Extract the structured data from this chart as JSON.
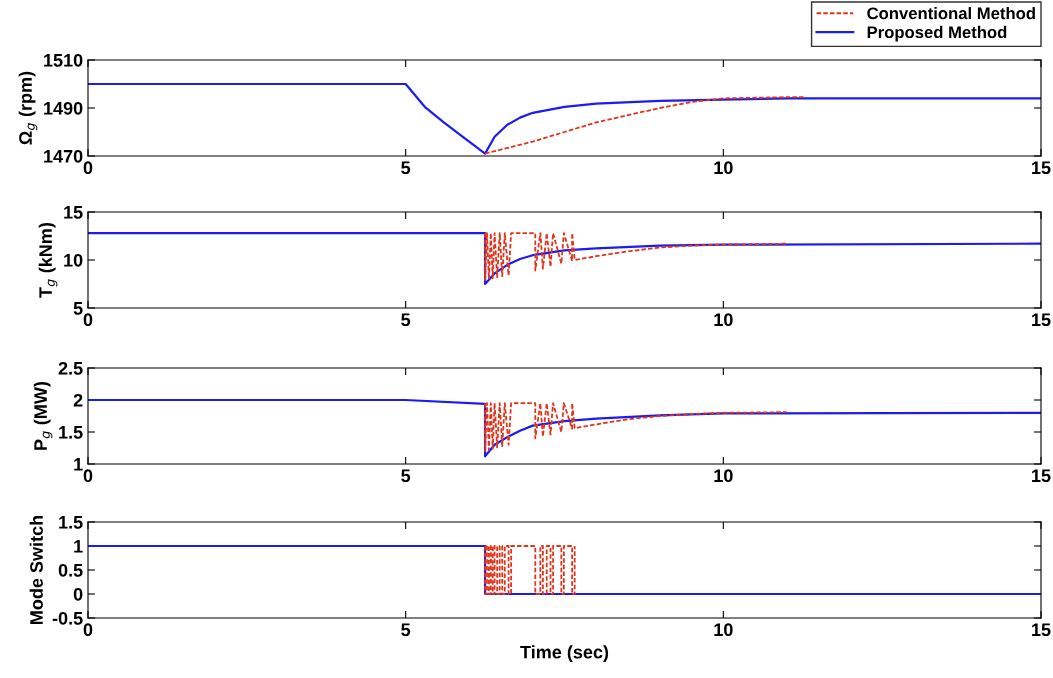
{
  "chart_data": [
    {
      "type": "line",
      "ylabel": "Ω$_{g}$ (rpm)",
      "xlim": [
        0,
        15
      ],
      "xticks": [
        0,
        5,
        10,
        15
      ],
      "ylim": [
        1470,
        1510
      ],
      "yticks": [
        1470,
        1490,
        1510
      ],
      "grid": false,
      "legend": "top right",
      "series": [
        {
          "name": "Conventional Method",
          "color": "#e2341a",
          "line_style": "dashed",
          "x": [
            6.25,
            7.0,
            7.5,
            8.0,
            8.5,
            9.0,
            9.5,
            10.0,
            11.0,
            11.3
          ],
          "values": [
            1471,
            1476,
            1480,
            1484,
            1487,
            1490,
            1492.5,
            1494,
            1494.5,
            1494.5
          ]
        },
        {
          "name": "Proposed Method",
          "color": "#1c1cf0",
          "line_style": "solid",
          "x": [
            0,
            5,
            5.3,
            5.6,
            5.9,
            6.25,
            6.4,
            6.6,
            6.8,
            7.0,
            7.5,
            8,
            9,
            10,
            11,
            15
          ],
          "values": [
            1500,
            1500,
            1490.5,
            1484,
            1478,
            1471,
            1478,
            1483,
            1486,
            1488,
            1490.5,
            1491.8,
            1493,
            1493.5,
            1494,
            1494
          ]
        }
      ]
    },
    {
      "type": "line",
      "ylabel": "T$_{g}$ (kNm)",
      "xlim": [
        0,
        15
      ],
      "xticks": [
        0,
        5,
        10,
        15
      ],
      "ylim": [
        5,
        15
      ],
      "yticks": [
        5,
        10,
        15
      ],
      "grid": false,
      "series": [
        {
          "color": "#e2341a",
          "line_style": "dashed",
          "x": [
            6.25,
            6.25,
            6.28,
            6.31,
            6.34,
            6.37,
            6.4,
            6.44,
            6.48,
            6.52,
            6.56,
            6.62,
            6.66,
            7.04,
            7.04,
            7.12,
            7.16,
            7.22,
            7.28,
            7.32,
            7.45,
            7.49,
            7.62,
            7.62,
            7.66,
            8.0,
            8.5,
            9.0,
            9.5,
            10.0,
            11.0
          ],
          "values": [
            12.8,
            7.9,
            12.8,
            8.0,
            12.8,
            8.1,
            12.8,
            8.2,
            12.8,
            8.3,
            12.8,
            8.4,
            12.8,
            12.8,
            8.9,
            12.8,
            9.1,
            12.8,
            9.3,
            12.8,
            9.6,
            12.8,
            9.9,
            12.8,
            10.0,
            10.4,
            10.9,
            11.3,
            11.5,
            11.6,
            11.7
          ]
        },
        {
          "color": "#1c1cf0",
          "line_style": "solid",
          "x": [
            0,
            6.25,
            6.25,
            6.4,
            6.6,
            6.8,
            7.0,
            7.5,
            8,
            9,
            10,
            15
          ],
          "values": [
            12.8,
            12.8,
            7.5,
            8.6,
            9.5,
            10.1,
            10.5,
            11.0,
            11.2,
            11.5,
            11.6,
            11.7
          ]
        }
      ]
    },
    {
      "type": "line",
      "ylabel": "P$_{g}$ (MW)",
      "xlim": [
        0,
        15
      ],
      "xticks": [
        0,
        5,
        10,
        15
      ],
      "ylim": [
        1,
        2.5
      ],
      "yticks": [
        1,
        1.5,
        2,
        2.5
      ],
      "grid": false,
      "series": [
        {
          "color": "#e2341a",
          "line_style": "dashed",
          "x": [
            6.25,
            6.25,
            6.28,
            6.31,
            6.34,
            6.37,
            6.4,
            6.44,
            6.48,
            6.52,
            6.56,
            6.62,
            6.66,
            7.04,
            7.04,
            7.12,
            7.16,
            7.22,
            7.28,
            7.32,
            7.45,
            7.49,
            7.62,
            7.62,
            7.66,
            8.0,
            8.5,
            9.0,
            9.5,
            10.0,
            11.0
          ],
          "values": [
            1.95,
            1.2,
            1.95,
            1.22,
            1.95,
            1.24,
            1.95,
            1.26,
            1.95,
            1.28,
            1.95,
            1.3,
            1.95,
            1.95,
            1.4,
            1.95,
            1.43,
            1.95,
            1.46,
            1.95,
            1.5,
            1.95,
            1.55,
            1.95,
            1.56,
            1.62,
            1.7,
            1.75,
            1.78,
            1.8,
            1.81
          ]
        },
        {
          "color": "#1c1cf0",
          "line_style": "solid",
          "x": [
            0,
            5,
            6.25,
            6.25,
            6.4,
            6.6,
            6.8,
            7.0,
            7.5,
            8,
            9,
            10,
            15
          ],
          "values": [
            2,
            2,
            1.94,
            1.12,
            1.3,
            1.42,
            1.52,
            1.6,
            1.67,
            1.71,
            1.76,
            1.79,
            1.8
          ]
        }
      ]
    },
    {
      "type": "line",
      "ylabel": "Mode Switch",
      "xlabel": "Time (sec)",
      "xlim": [
        0,
        15
      ],
      "xticks": [
        0,
        5,
        10,
        15
      ],
      "ylim": [
        -0.5,
        1.5
      ],
      "yticks": [
        -0.5,
        0,
        0.5,
        1,
        1.5
      ],
      "grid": false,
      "series": [
        {
          "color": "#e2341a",
          "line_style": "dashed",
          "x": [
            6.25,
            6.25,
            6.28,
            6.28,
            6.31,
            6.31,
            6.34,
            6.34,
            6.37,
            6.37,
            6.4,
            6.4,
            6.44,
            6.44,
            6.48,
            6.48,
            6.52,
            6.52,
            6.56,
            6.56,
            6.62,
            6.62,
            6.66,
            6.66,
            7.04,
            7.04,
            7.12,
            7.12,
            7.16,
            7.16,
            7.22,
            7.22,
            7.28,
            7.28,
            7.32,
            7.32,
            7.45,
            7.45,
            7.49,
            7.49,
            7.62,
            7.62,
            7.66,
            7.66
          ],
          "values": [
            1,
            0,
            0,
            1,
            1,
            0,
            0,
            1,
            1,
            0,
            0,
            1,
            1,
            0,
            0,
            1,
            1,
            0,
            0,
            1,
            1,
            0,
            0,
            1,
            1,
            0,
            0,
            1,
            1,
            0,
            0,
            1,
            1,
            0,
            0,
            1,
            1,
            0,
            0,
            1,
            1,
            0,
            0,
            1
          ]
        },
        {
          "color": "#1c1cf0",
          "line_style": "solid",
          "x": [
            0,
            6.25,
            6.25,
            15
          ],
          "values": [
            1,
            1,
            0,
            0
          ]
        }
      ]
    }
  ]
}
